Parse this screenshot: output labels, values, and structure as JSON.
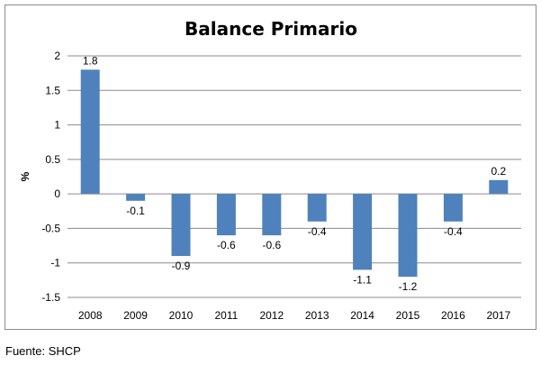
{
  "chart_data": {
    "type": "bar",
    "title": "Balance Primario",
    "xlabel": "",
    "ylabel": "%",
    "categories": [
      "2008",
      "2009",
      "2010",
      "2011",
      "2012",
      "2013",
      "2014",
      "2015",
      "2016",
      "2017"
    ],
    "values": [
      1.8,
      -0.1,
      -0.9,
      -0.6,
      -0.6,
      -0.4,
      -1.1,
      -1.2,
      -0.4,
      0.2
    ],
    "data_labels": [
      "1.8",
      "-0.1",
      "-0.9",
      "-0.6",
      "-0.6",
      "-0.4",
      "-1.1",
      "-1.2",
      "-0.4",
      "0.2"
    ],
    "ylim": [
      -1.5,
      2
    ],
    "yticks": [
      2,
      1.5,
      1,
      0.5,
      0,
      -0.5,
      -1,
      -1.5
    ],
    "ytick_labels": [
      "2",
      "1.5",
      "1",
      "0.5",
      "0",
      "-0.5",
      "-1",
      "-1.5"
    ],
    "grid": true,
    "legend": "none",
    "bar_color": "#4f81bd"
  },
  "source_note": "Fuente: SHCP"
}
